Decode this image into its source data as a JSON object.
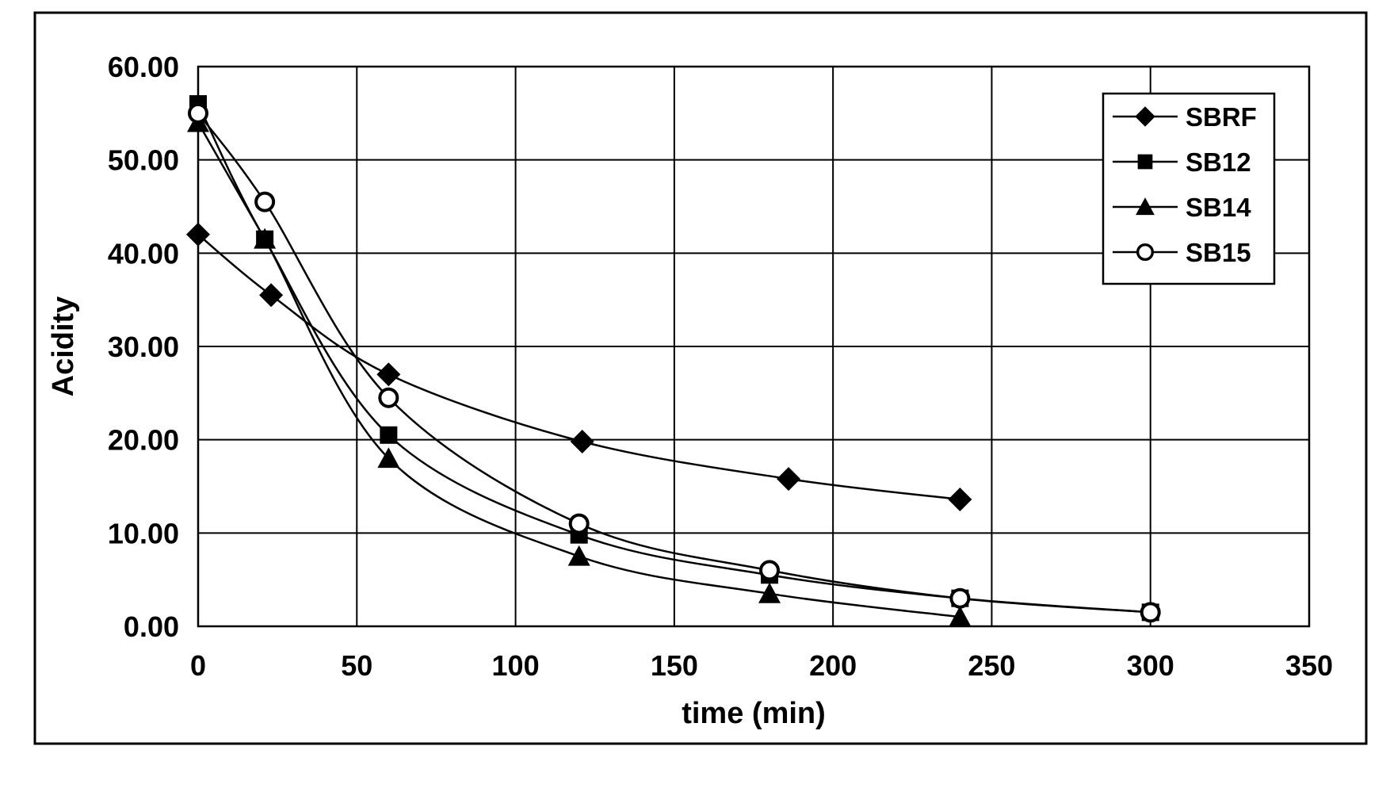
{
  "chart_data": {
    "type": "line",
    "title": "",
    "xlabel": "time (min)",
    "ylabel": "Acidity",
    "xlim": [
      0,
      350
    ],
    "ylim": [
      0,
      60
    ],
    "x_ticks": [
      0,
      50,
      100,
      150,
      200,
      250,
      300,
      350
    ],
    "y_ticks": [
      0,
      10,
      20,
      30,
      40,
      50,
      60
    ],
    "x_tick_labels": [
      "0",
      "50",
      "100",
      "150",
      "200",
      "250",
      "300",
      "350"
    ],
    "y_tick_labels": [
      "0.00",
      "10.00",
      "20.00",
      "30.00",
      "40.00",
      "50.00",
      "60.00"
    ],
    "grid": true,
    "smooth": true,
    "legend_position": "top-right",
    "series": [
      {
        "name": "SBRF",
        "marker": "diamond",
        "color": "#000000",
        "x": [
          0,
          23,
          60,
          121,
          186,
          240
        ],
        "y": [
          42.0,
          35.5,
          27.0,
          19.8,
          15.8,
          13.6
        ]
      },
      {
        "name": "SB12",
        "marker": "square",
        "color": "#000000",
        "x": [
          0,
          21,
          60,
          120,
          180,
          240,
          300
        ],
        "y": [
          56.0,
          41.5,
          20.5,
          9.8,
          5.5,
          3.0,
          1.5
        ]
      },
      {
        "name": "SB14",
        "marker": "triangle",
        "color": "#000000",
        "x": [
          0,
          21,
          60,
          120,
          180,
          240
        ],
        "y": [
          54.0,
          41.5,
          18.0,
          7.5,
          3.5,
          1.0
        ]
      },
      {
        "name": "SB15",
        "marker": "circle",
        "color": "#000000",
        "x": [
          0,
          21,
          60,
          120,
          180,
          240,
          300
        ],
        "y": [
          55.0,
          45.5,
          24.5,
          11.0,
          6.0,
          3.0,
          1.5
        ]
      }
    ]
  }
}
